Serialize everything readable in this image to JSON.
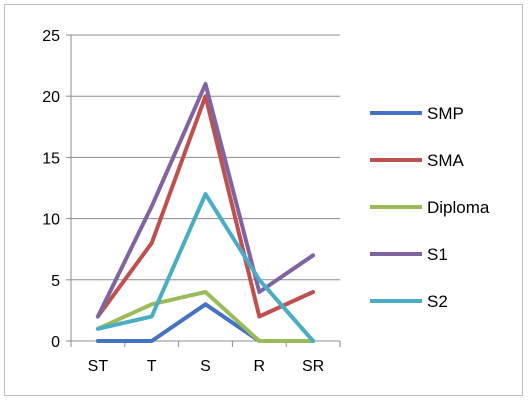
{
  "chart_data": {
    "type": "line",
    "categories": [
      "ST",
      "T",
      "S",
      "R",
      "SR"
    ],
    "ylim": [
      0,
      25
    ],
    "yticks": [
      0,
      5,
      10,
      15,
      20,
      25
    ],
    "grid": "horizontal",
    "legend_position": "right",
    "series": [
      {
        "name": "SMP",
        "color": "#4472C4",
        "values": [
          0,
          0,
          3,
          0,
          0
        ]
      },
      {
        "name": "SMA",
        "color": "#C0504D",
        "values": [
          2,
          8,
          20,
          2,
          4
        ]
      },
      {
        "name": "Diploma",
        "color": "#9BBB59",
        "values": [
          1,
          3,
          4,
          0,
          0
        ]
      },
      {
        "name": "S1",
        "color": "#8064A2",
        "values": [
          2,
          11,
          21,
          4,
          7
        ]
      },
      {
        "name": "S2",
        "color": "#4BACC6",
        "values": [
          1,
          2,
          12,
          5,
          0
        ]
      }
    ]
  }
}
